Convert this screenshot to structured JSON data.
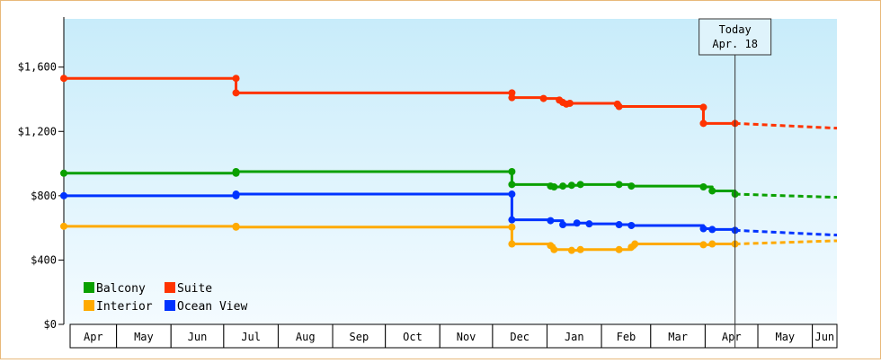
{
  "chart_data": {
    "type": "line",
    "title": "",
    "xlabel": "",
    "ylabel": "",
    "x_axis": {
      "months": [
        "Apr",
        "May",
        "Jun",
        "Jul",
        "Aug",
        "Sep",
        "Oct",
        "Nov",
        "Dec",
        "Jan",
        "Feb",
        "Mar",
        "Apr",
        "May",
        "Jun"
      ],
      "range": [
        "2017-04-01",
        "2018-06-15"
      ]
    },
    "y_axis": {
      "range": [
        0,
        1900
      ],
      "ticks": [
        0,
        400,
        800,
        1200,
        1600
      ],
      "tick_labels": [
        "$0",
        "$400",
        "$800",
        "$1,200",
        "$1,600"
      ]
    },
    "grid": false,
    "legend": {
      "placement": "bottom-left",
      "items": [
        {
          "label": "Balcony",
          "color": "#0aa000"
        },
        {
          "label": "Suite",
          "color": "#ff3300"
        },
        {
          "label": "Interior",
          "color": "#ffaa00"
        },
        {
          "label": "Ocean View",
          "color": "#0033ff"
        }
      ]
    },
    "today_marker": {
      "line1": "Today",
      "line2": "Apr. 18",
      "date": "2018-04-18"
    },
    "series": [
      {
        "name": "Suite",
        "color": "#ff3300",
        "points": [
          [
            "2017-04-01",
            1530
          ],
          [
            "2017-07-08",
            1530
          ],
          [
            "2017-07-08",
            1440
          ],
          [
            "2017-12-12",
            1440
          ],
          [
            "2017-12-12",
            1410
          ],
          [
            "2017-12-30",
            1405
          ],
          [
            "2018-01-08",
            1395
          ],
          [
            "2018-01-10",
            1380
          ],
          [
            "2018-01-12",
            1370
          ],
          [
            "2018-01-14",
            1375
          ],
          [
            "2018-02-10",
            1370
          ],
          [
            "2018-02-11",
            1355
          ],
          [
            "2018-03-31",
            1350
          ],
          [
            "2018-03-31",
            1250
          ],
          [
            "2018-04-18",
            1250
          ]
        ],
        "forecast": [
          [
            "2018-04-18",
            1250
          ],
          [
            "2018-06-15",
            1220
          ]
        ]
      },
      {
        "name": "Balcony",
        "color": "#0aa000",
        "points": [
          [
            "2017-04-01",
            940
          ],
          [
            "2017-07-08",
            940
          ],
          [
            "2017-07-08",
            950
          ],
          [
            "2017-12-12",
            950
          ],
          [
            "2017-12-12",
            870
          ],
          [
            "2018-01-03",
            860
          ],
          [
            "2018-01-05",
            855
          ],
          [
            "2018-01-10",
            860
          ],
          [
            "2018-01-15",
            865
          ],
          [
            "2018-01-20",
            870
          ],
          [
            "2018-02-11",
            870
          ],
          [
            "2018-02-18",
            860
          ],
          [
            "2018-03-31",
            855
          ],
          [
            "2018-04-05",
            830
          ],
          [
            "2018-04-18",
            810
          ]
        ],
        "forecast": [
          [
            "2018-04-18",
            810
          ],
          [
            "2018-06-15",
            790
          ]
        ]
      },
      {
        "name": "Ocean View",
        "color": "#0033ff",
        "points": [
          [
            "2017-04-01",
            800
          ],
          [
            "2017-07-08",
            800
          ],
          [
            "2017-07-08",
            810
          ],
          [
            "2017-12-12",
            810
          ],
          [
            "2017-12-12",
            650
          ],
          [
            "2018-01-03",
            645
          ],
          [
            "2018-01-10",
            620
          ],
          [
            "2018-01-18",
            630
          ],
          [
            "2018-01-25",
            625
          ],
          [
            "2018-02-11",
            620
          ],
          [
            "2018-02-18",
            615
          ],
          [
            "2018-03-31",
            595
          ],
          [
            "2018-04-05",
            590
          ],
          [
            "2018-04-18",
            585
          ]
        ],
        "forecast": [
          [
            "2018-04-18",
            585
          ],
          [
            "2018-06-15",
            555
          ]
        ]
      },
      {
        "name": "Interior",
        "color": "#ffaa00",
        "points": [
          [
            "2017-04-01",
            610
          ],
          [
            "2017-07-08",
            610
          ],
          [
            "2017-07-08",
            605
          ],
          [
            "2017-12-12",
            605
          ],
          [
            "2017-12-12",
            500
          ],
          [
            "2018-01-03",
            490
          ],
          [
            "2018-01-05",
            465
          ],
          [
            "2018-01-15",
            460
          ],
          [
            "2018-01-20",
            465
          ],
          [
            "2018-02-11",
            465
          ],
          [
            "2018-02-18",
            480
          ],
          [
            "2018-02-20",
            500
          ],
          [
            "2018-03-31",
            495
          ],
          [
            "2018-04-05",
            500
          ],
          [
            "2018-04-18",
            500
          ]
        ],
        "forecast": [
          [
            "2018-04-18",
            500
          ],
          [
            "2018-06-15",
            520
          ]
        ]
      }
    ]
  }
}
